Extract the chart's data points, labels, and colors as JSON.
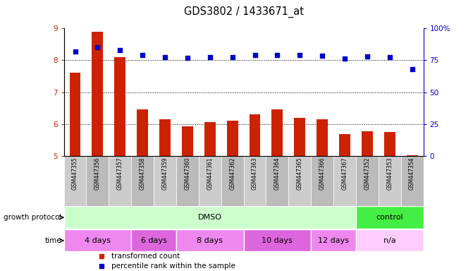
{
  "title": "GDS3802 / 1433671_at",
  "samples": [
    "GSM447355",
    "GSM447356",
    "GSM447357",
    "GSM447358",
    "GSM447359",
    "GSM447360",
    "GSM447361",
    "GSM447362",
    "GSM447363",
    "GSM447364",
    "GSM447365",
    "GSM447366",
    "GSM447367",
    "GSM447352",
    "GSM447353",
    "GSM447354"
  ],
  "bar_values": [
    7.6,
    8.9,
    8.1,
    6.45,
    6.15,
    5.92,
    6.05,
    6.1,
    6.3,
    6.45,
    6.2,
    6.15,
    5.68,
    5.78,
    5.75,
    5.02
  ],
  "scatter_values": [
    82,
    85,
    83,
    79,
    77.5,
    77,
    77.5,
    77.5,
    79,
    79,
    79,
    78.5,
    76.5,
    78,
    77.5,
    68
  ],
  "ylim_left": [
    5,
    9
  ],
  "ylim_right": [
    0,
    100
  ],
  "yticks_left": [
    5,
    6,
    7,
    8,
    9
  ],
  "yticks_right": [
    0,
    25,
    50,
    75,
    100
  ],
  "bar_color": "#cc2200",
  "scatter_color": "#0000cc",
  "bg_color": "#ffffff",
  "label_bg_even": "#cccccc",
  "label_bg_odd": "#bbbbbb",
  "protocol_row": {
    "label": "growth protocol",
    "groups": [
      {
        "text": "DMSO",
        "start": 0,
        "end": 13,
        "color": "#ccffcc"
      },
      {
        "text": "control",
        "start": 13,
        "end": 16,
        "color": "#44ee44"
      }
    ]
  },
  "time_row": {
    "label": "time",
    "groups": [
      {
        "text": "4 days",
        "start": 0,
        "end": 3,
        "color": "#ee88ee"
      },
      {
        "text": "6 days",
        "start": 3,
        "end": 5,
        "color": "#dd66dd"
      },
      {
        "text": "8 days",
        "start": 5,
        "end": 8,
        "color": "#ee88ee"
      },
      {
        "text": "10 days",
        "start": 8,
        "end": 11,
        "color": "#dd66dd"
      },
      {
        "text": "12 days",
        "start": 11,
        "end": 13,
        "color": "#ee88ee"
      },
      {
        "text": "n/a",
        "start": 13,
        "end": 16,
        "color": "#ffccff"
      }
    ]
  },
  "legend": [
    {
      "label": "transformed count",
      "color": "#cc2200",
      "marker": "s"
    },
    {
      "label": "percentile rank within the sample",
      "color": "#0000cc",
      "marker": "s"
    }
  ]
}
